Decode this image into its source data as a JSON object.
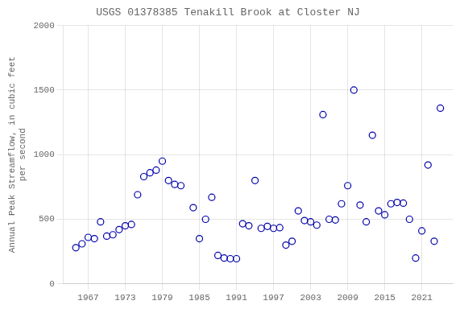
{
  "chart_data": {
    "type": "scatter",
    "title": "USGS 01378385 Tenakill Brook at Closter NJ",
    "ylabel": "Annual Peak Streamflow, in cubic feet\nper second",
    "x": [
      1965,
      1966,
      1967,
      1968,
      1969,
      1970,
      1971,
      1972,
      1973,
      1974,
      1975,
      1976,
      1977,
      1978,
      1979,
      1980,
      1981,
      1982,
      1984,
      1985,
      1986,
      1987,
      1988,
      1989,
      1990,
      1991,
      1992,
      1993,
      1994,
      1995,
      1996,
      1997,
      1998,
      1999,
      2000,
      2001,
      2002,
      2003,
      2004,
      2005,
      2006,
      2007,
      2008,
      2009,
      2010,
      2011,
      2012,
      2013,
      2014,
      2015,
      2016,
      2017,
      2018,
      2019,
      2020,
      2021,
      2022,
      2023,
      2024
    ],
    "values": [
      280,
      310,
      360,
      350,
      480,
      370,
      380,
      420,
      450,
      460,
      690,
      830,
      860,
      880,
      950,
      800,
      770,
      760,
      590,
      350,
      500,
      670,
      220,
      200,
      195,
      195,
      465,
      450,
      800,
      430,
      445,
      430,
      435,
      300,
      330,
      565,
      490,
      480,
      455,
      1310,
      500,
      495,
      620,
      760,
      1500,
      610,
      480,
      1150,
      565,
      535,
      620,
      630,
      625,
      500,
      200,
      410,
      920,
      330,
      1360
    ],
    "color": "#0000AA",
    "marker": "circle",
    "xlim": [
      1963,
      2026
    ],
    "ylim": [
      0,
      2000
    ],
    "xticks": [
      1967,
      1973,
      1979,
      1985,
      1991,
      1997,
      2003,
      2009,
      2015,
      2021
    ],
    "yticks": [
      0,
      500,
      1000,
      1500,
      2000
    ],
    "grid": true
  }
}
